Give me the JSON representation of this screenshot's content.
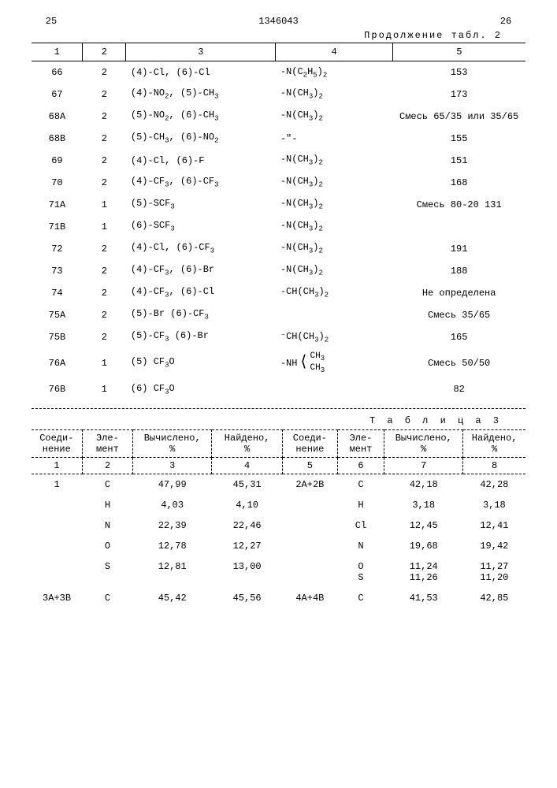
{
  "header": {
    "page_left": "25",
    "doc_id": "1346043",
    "page_right": "26",
    "continuation": "Продолжение табл. 2"
  },
  "table2": {
    "columns": [
      "1",
      "2",
      "3",
      "4",
      "5"
    ],
    "rows": [
      {
        "c1": "66",
        "c2": "2",
        "c3": "(4)-Cl, (6)-Cl",
        "c4": "-N(C₂H₅)₂",
        "c5": "153"
      },
      {
        "c1": "67",
        "c2": "2",
        "c3": "(4)-NO₂, (5)-CH₃",
        "c4": "-N(CH₃)₂",
        "c5": "173"
      },
      {
        "c1": "68A",
        "c2": "2",
        "c3": "(5)-NO₂, (6)-CH₃",
        "c4": "-N(CH₃)₂",
        "c5": "Смесь 65/35 или 35/65"
      },
      {
        "c1": "68B",
        "c2": "2",
        "c3": "(5)-CH₃, (6)-NO₂",
        "c4": "-\"-",
        "c5": "155"
      },
      {
        "c1": "69",
        "c2": "2",
        "c3": "(4)-Cl, (6)-F",
        "c4": "-N(CH₃)₂",
        "c5": "151"
      },
      {
        "c1": "70",
        "c2": "2",
        "c3": "(4)-CF₃, (6)-CF₃",
        "c4": "-N(CH₃)₂",
        "c5": "168"
      },
      {
        "c1": "71A",
        "c2": "1",
        "c3": "(5)-SCF₃",
        "c4": "-N(CH₃)₂",
        "c5": "Смесь 80-20 131"
      },
      {
        "c1": "71B",
        "c2": "1",
        "c3": "(6)-SCF₃",
        "c4": "-N(CH₃)₂",
        "c5": ""
      },
      {
        "c1": "72",
        "c2": "2",
        "c3": "(4)-Cl, (6)-CF₃",
        "c4": "-N(CH₃)₂",
        "c5": "191"
      },
      {
        "c1": "73",
        "c2": "2",
        "c3": "(4)-CF₃, (6)-Br",
        "c4": "-N(CH₃)₂",
        "c5": "188"
      },
      {
        "c1": "74",
        "c2": "2",
        "c3": "(4)-CF₃, (6)-Cl",
        "c4": "-CH(CH₃)₂",
        "c5": "Не определена"
      },
      {
        "c1": "75A",
        "c2": "2",
        "c3": "(5)-Br (6)-CF₃",
        "c4": "",
        "c5": "Смесь 35/65"
      },
      {
        "c1": "75B",
        "c2": "2",
        "c3": "(5)-CF₃ (6)-Br",
        "c4": "⁻CH(CH₃)₂",
        "c5": "165"
      },
      {
        "c1": "76A",
        "c2": "1",
        "c3": "(5) CF₃O",
        "c4": "__NH_STRUCT__",
        "c5": "Смесь 50/50"
      },
      {
        "c1": "76B",
        "c2": "1",
        "c3": "(6) CF₃O",
        "c4": "",
        "c5": "82"
      }
    ]
  },
  "table3_caption": "Т а б л и ц а  3",
  "table3": {
    "header1": [
      "Соеди-\nнение",
      "Эле-\nмент",
      "Вычислено,\n%",
      "Найдено,\n%",
      "Соеди-\nнение",
      "Эле-\nмент",
      "Вычислено,\n%",
      "Найдено,\n%"
    ],
    "header2": [
      "1",
      "2",
      "3",
      "4",
      "5",
      "6",
      "7",
      "8"
    ],
    "rows": [
      [
        "1",
        "C",
        "47,99",
        "45,31",
        "2A+2B",
        "C",
        "42,18",
        "42,28"
      ],
      [
        "",
        "H",
        "4,03",
        "4,10",
        "",
        "H",
        "3,18",
        "3,18"
      ],
      [
        "",
        "N",
        "22,39",
        "22,46",
        "",
        "Cl",
        "12,45",
        "12,41"
      ],
      [
        "",
        "O",
        "12,78",
        "12,27",
        "",
        "N",
        "19,68",
        "19,42"
      ],
      [
        "",
        "S",
        "12,81",
        "13,00",
        "",
        "O\nS",
        "11,24\n11,26",
        "11,27\n11,20"
      ],
      [
        "3A+3B",
        "C",
        "45,42",
        "45,56",
        "4A+4B",
        "C",
        "41,53",
        "42,85"
      ]
    ]
  }
}
